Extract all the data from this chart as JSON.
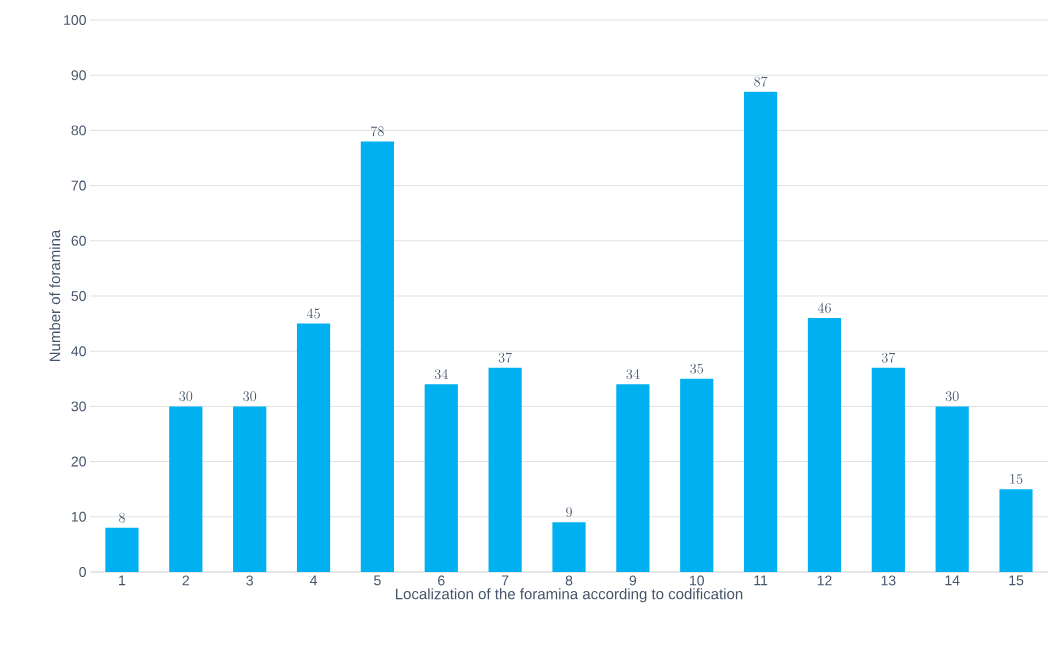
{
  "chart_data": {
    "type": "bar",
    "xlabel": "Localization of the foramina according to codification",
    "ylabel": "Number of foramina",
    "categories": [
      "1",
      "2",
      "3",
      "4",
      "5",
      "6",
      "7",
      "8",
      "9",
      "10",
      "11",
      "12",
      "13",
      "14",
      "15"
    ],
    "values": [
      8,
      30,
      30,
      45,
      78,
      34,
      37,
      9,
      34,
      35,
      87,
      46,
      37,
      30,
      15
    ],
    "color": "#00b0f0",
    "ylim": [
      0,
      100
    ],
    "yticks": [
      0,
      10,
      20,
      30,
      40,
      50,
      60,
      70,
      80,
      90,
      100
    ],
    "grid": "y",
    "data_labels": true
  }
}
